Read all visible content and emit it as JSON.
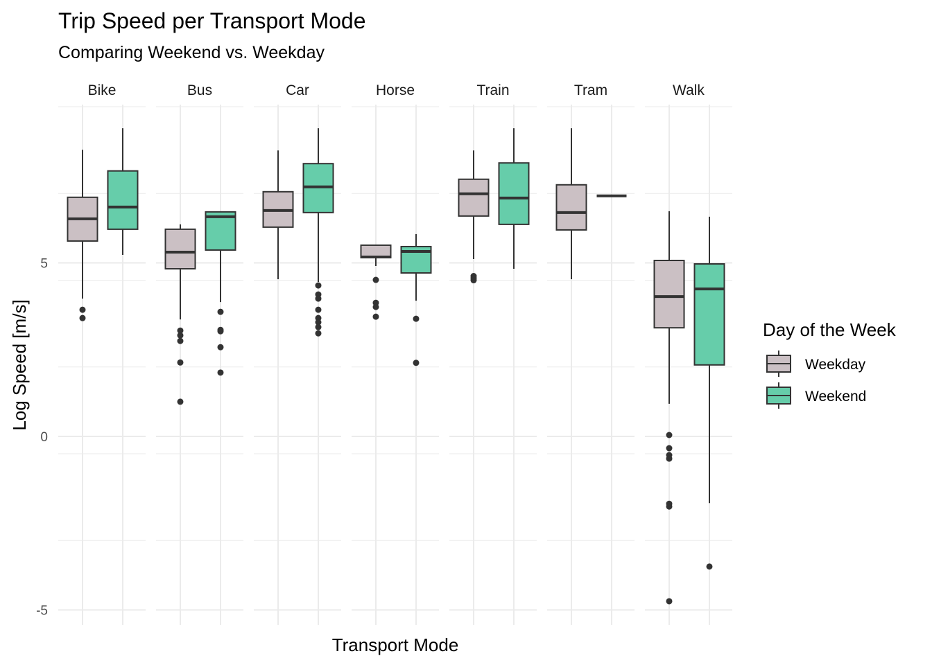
{
  "chart_data": {
    "type": "boxplot",
    "title": "Trip Speed per Transport Mode",
    "subtitle": "Comparing Weekend vs. Weekday",
    "xlabel": "Transport Mode",
    "ylabel": "Log Speed [m/s]",
    "ylim": [
      -5.5,
      9.5
    ],
    "yticks": [
      -5,
      0,
      5
    ],
    "ytick_labels": [
      "-5",
      "0",
      "5"
    ],
    "grid": true,
    "facets": [
      "Bike",
      "Bus",
      "Car",
      "Horse",
      "Train",
      "Tram",
      "Walk"
    ],
    "legend": {
      "title": "Day of the Week",
      "placement": "right",
      "entries": [
        {
          "name": "Weekday",
          "color": "#CBC0C4"
        },
        {
          "name": "Weekend",
          "color": "#66CDAA"
        }
      ]
    },
    "series": [
      {
        "name": "Weekday",
        "color": "#CBC0C4",
        "boxes": [
          {
            "facet": "Bike",
            "whisker_low": 3.97,
            "q1": 5.63,
            "median": 6.27,
            "q3": 6.89,
            "whisker_high": 8.26,
            "outliers": [
              3.65,
              3.41
            ]
          },
          {
            "facet": "Bus",
            "whisker_low": 3.37,
            "q1": 4.83,
            "median": 5.31,
            "q3": 5.97,
            "whisker_high": 6.11,
            "outliers": [
              3.05,
              2.91,
              2.75,
              2.13,
              1.0
            ]
          },
          {
            "facet": "Car",
            "whisker_low": 4.53,
            "q1": 6.03,
            "median": 6.51,
            "q3": 7.05,
            "whisker_high": 8.24,
            "outliers": []
          },
          {
            "facet": "Horse",
            "whisker_low": 4.91,
            "q1": 5.15,
            "median": 5.17,
            "q3": 5.51,
            "whisker_high": 5.51,
            "outliers": [
              4.51,
              3.85,
              3.73,
              3.45
            ]
          },
          {
            "facet": "Train",
            "whisker_low": 5.11,
            "q1": 6.35,
            "median": 6.99,
            "q3": 7.41,
            "whisker_high": 8.24,
            "outliers": [
              4.62,
              4.56,
              4.5
            ]
          },
          {
            "facet": "Tram",
            "whisker_low": 4.53,
            "q1": 5.95,
            "median": 6.45,
            "q3": 7.25,
            "whisker_high": 8.88,
            "outliers": []
          },
          {
            "facet": "Walk",
            "whisker_low": 0.94,
            "q1": 3.13,
            "median": 4.03,
            "q3": 5.07,
            "whisker_high": 6.49,
            "outliers": [
              0.04,
              -0.34,
              -0.54,
              -0.64,
              -1.94,
              -2.02,
              -4.75
            ]
          }
        ]
      },
      {
        "name": "Weekend",
        "color": "#66CDAA",
        "boxes": [
          {
            "facet": "Bike",
            "whisker_low": 5.23,
            "q1": 5.97,
            "median": 6.61,
            "q3": 7.65,
            "whisker_high": 8.88,
            "outliers": []
          },
          {
            "facet": "Bus",
            "whisker_low": 3.87,
            "q1": 5.37,
            "median": 6.33,
            "q3": 6.47,
            "whisker_high": 6.47,
            "outliers": [
              3.59,
              3.07,
              3.03,
              2.57,
              1.84
            ]
          },
          {
            "facet": "Car",
            "whisker_low": 4.45,
            "q1": 6.45,
            "median": 7.19,
            "q3": 7.86,
            "whisker_high": 8.88,
            "outliers": [
              4.35,
              4.09,
              3.97,
              3.65,
              3.41,
              3.29,
              3.15,
              2.97
            ]
          },
          {
            "facet": "Horse",
            "whisker_low": 3.91,
            "q1": 4.71,
            "median": 5.33,
            "q3": 5.47,
            "whisker_high": 5.83,
            "outliers": [
              3.39,
              2.12
            ]
          },
          {
            "facet": "Train",
            "whisker_low": 4.83,
            "q1": 6.11,
            "median": 6.87,
            "q3": 7.88,
            "whisker_high": 8.88,
            "outliers": []
          },
          {
            "facet": "Tram",
            "whisker_low": 6.93,
            "q1": 6.93,
            "median": 6.93,
            "q3": 6.93,
            "whisker_high": 6.93,
            "outliers": []
          },
          {
            "facet": "Walk",
            "whisker_low": -1.92,
            "q1": 2.06,
            "median": 4.25,
            "q3": 4.97,
            "whisker_high": 6.33,
            "outliers": [
              -3.75
            ]
          }
        ]
      }
    ]
  }
}
